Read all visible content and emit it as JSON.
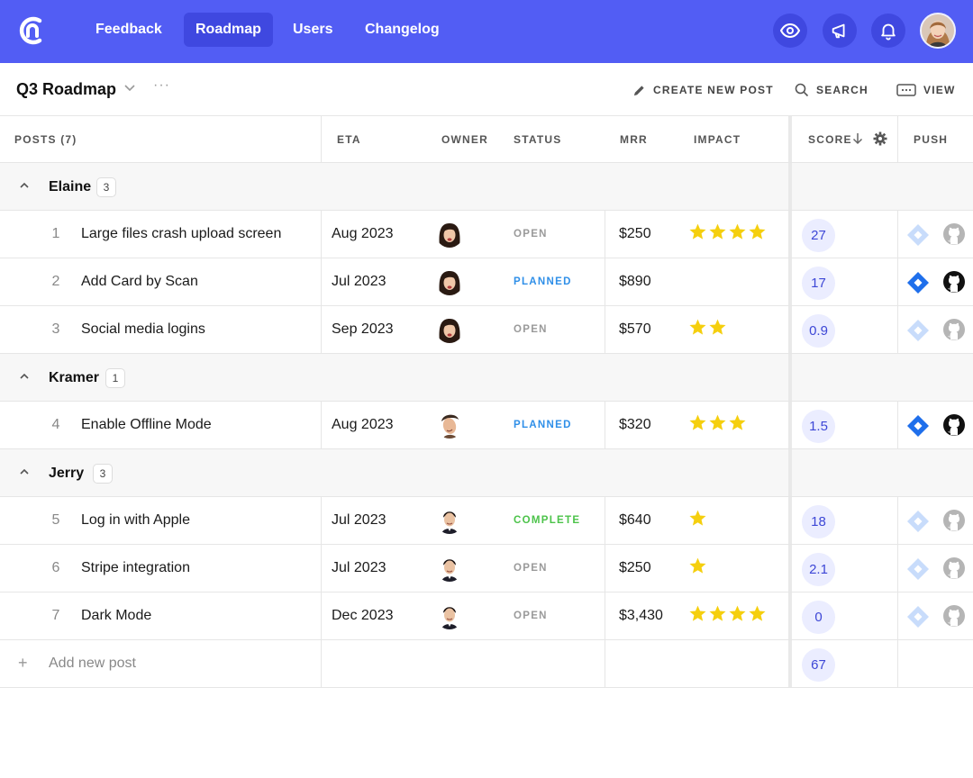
{
  "nav": {
    "items": [
      {
        "label": "Feedback",
        "active": false
      },
      {
        "label": "Roadmap",
        "active": true
      },
      {
        "label": "Users",
        "active": false
      },
      {
        "label": "Changelog",
        "active": false
      }
    ],
    "icons": [
      "eye-icon",
      "megaphone-icon",
      "bell-icon"
    ],
    "accent": "#525df4"
  },
  "header": {
    "title": "Q3 Roadmap",
    "create_label": "CREATE NEW POST",
    "search_label": "SEARCH",
    "view_label": "VIEW"
  },
  "columns": {
    "posts": "POSTS (7)",
    "eta": "ETA",
    "owner": "OWNER",
    "status": "STATUS",
    "mrr": "MRR",
    "impact": "IMPACT",
    "score": "SCORE",
    "push": "PUSH"
  },
  "groups": [
    {
      "name": "Elaine",
      "count": "3",
      "posts": [
        {
          "index": "1",
          "title": "Large files crash upload screen",
          "eta": "Aug 2023",
          "owner": "elaine",
          "status": "OPEN",
          "mrr": "$250",
          "impact": 4,
          "score": "27",
          "pushed": false
        },
        {
          "index": "2",
          "title": "Add Card by Scan",
          "eta": "Jul 2023",
          "owner": "elaine",
          "status": "PLANNED",
          "mrr": "$890",
          "impact": 0,
          "score": "17",
          "pushed": true
        },
        {
          "index": "3",
          "title": "Social media logins",
          "eta": "Sep 2023",
          "owner": "elaine",
          "status": "OPEN",
          "mrr": "$570",
          "impact": 2,
          "score": "0.9",
          "pushed": false
        }
      ]
    },
    {
      "name": "Kramer",
      "count": "1",
      "posts": [
        {
          "index": "4",
          "title": "Enable Offline Mode",
          "eta": "Aug 2023",
          "owner": "kramer",
          "status": "PLANNED",
          "mrr": "$320",
          "impact": 3,
          "score": "1.5",
          "pushed": true
        }
      ]
    },
    {
      "name": "Jerry",
      "count": "3",
      "posts": [
        {
          "index": "5",
          "title": "Log in with Apple",
          "eta": "Jul 2023",
          "owner": "jerry",
          "status": "COMPLETE",
          "mrr": "$640",
          "impact": 1,
          "score": "18",
          "pushed": false
        },
        {
          "index": "6",
          "title": "Stripe integration",
          "eta": "Jul 2023",
          "owner": "jerry",
          "status": "OPEN",
          "mrr": "$250",
          "impact": 1,
          "score": "2.1",
          "pushed": false
        },
        {
          "index": "7",
          "title": "Dark Mode",
          "eta": "Dec 2023",
          "owner": "jerry",
          "status": "OPEN",
          "mrr": "$3,430",
          "impact": 4,
          "score": "0",
          "pushed": false
        }
      ]
    }
  ],
  "footer": {
    "add_label": "Add new post",
    "score_total": "67"
  },
  "status_colors": {
    "OPEN": "#9a9a9a",
    "PLANNED": "#2f8fe8",
    "COMPLETE": "#4cc34a"
  }
}
